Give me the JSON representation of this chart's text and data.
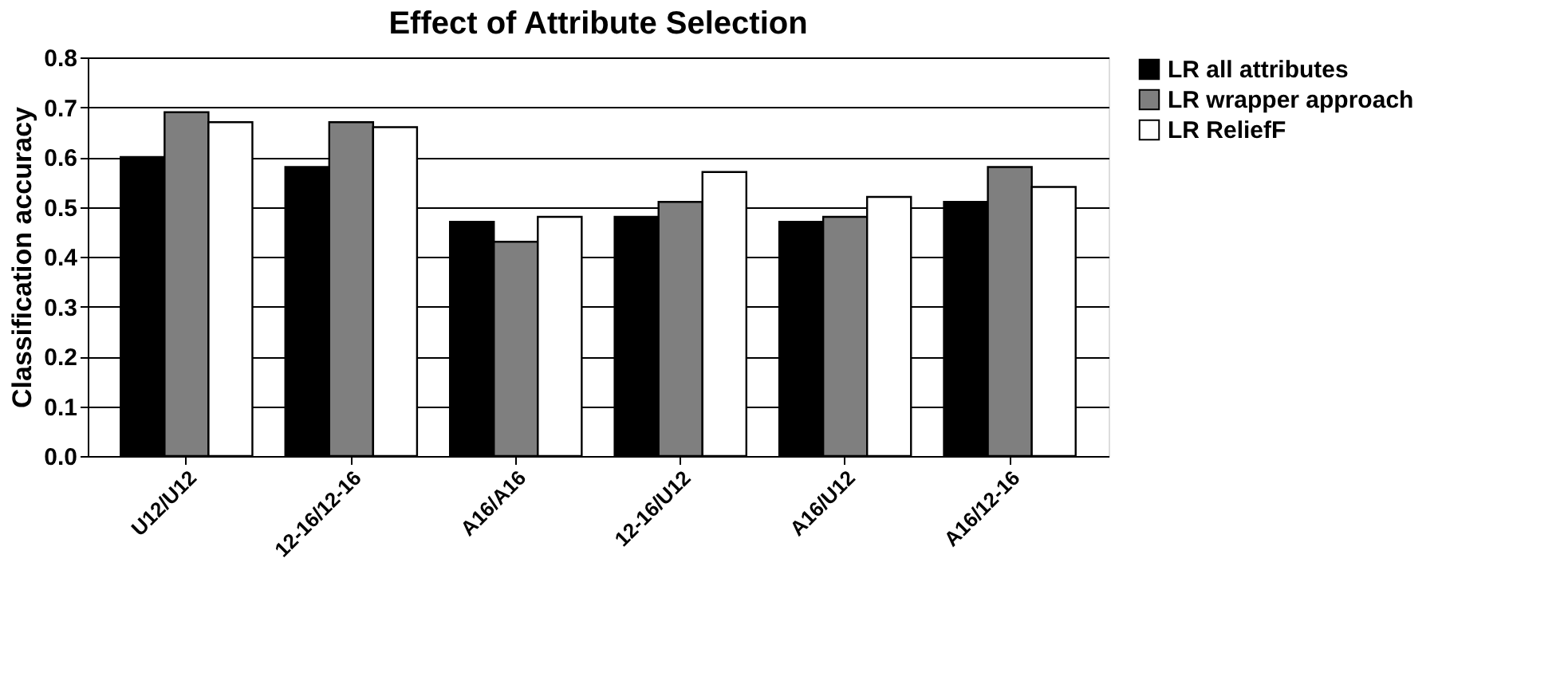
{
  "chart_data": {
    "type": "bar",
    "title": "Effect of Attribute Selection",
    "ylabel": "Classification accuracy",
    "categories": [
      "U12/U12",
      "12-16/12-16",
      "A16/A16",
      "12-16/U12",
      "A16/U12",
      "A16/12-16"
    ],
    "series": [
      {
        "name": "LR all attributes",
        "color": "#000000",
        "values": [
          0.6,
          0.58,
          0.47,
          0.48,
          0.47,
          0.51
        ]
      },
      {
        "name": "LR wrapper approach",
        "color": "#7f7f7f",
        "values": [
          0.69,
          0.67,
          0.43,
          0.51,
          0.48,
          0.58
        ]
      },
      {
        "name": "LR ReliefF",
        "color": "#ffffff",
        "values": [
          0.67,
          0.66,
          0.48,
          0.57,
          0.52,
          0.54
        ]
      }
    ],
    "ylim": [
      0,
      0.8
    ],
    "yticks": [
      {
        "value": 0,
        "label": "0.0"
      },
      {
        "value": 0.1,
        "label": "0.1"
      },
      {
        "value": 0.2,
        "label": "0.2"
      },
      {
        "value": 0.3,
        "label": "0.3"
      },
      {
        "value": 0.4,
        "label": "0.4"
      },
      {
        "value": 0.5,
        "label": "0.5"
      },
      {
        "value": 0.6,
        "label": "0.6"
      },
      {
        "value": 0.7,
        "label": "0.7"
      },
      {
        "value": 0.8,
        "label": "0.8"
      }
    ],
    "grid": "y",
    "legend": "right"
  }
}
